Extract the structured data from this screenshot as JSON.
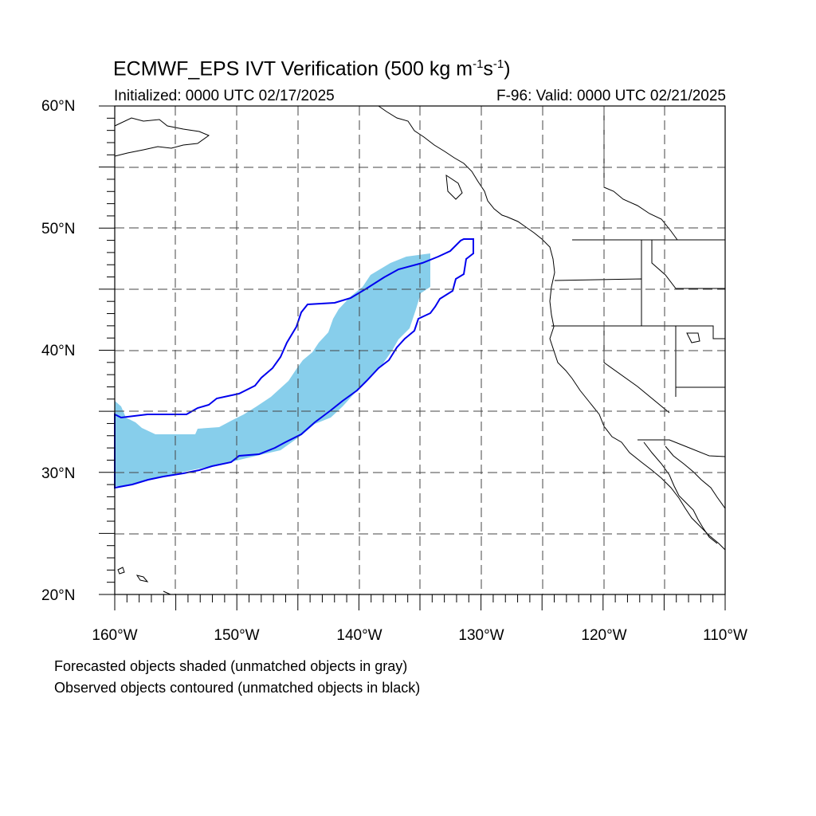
{
  "header": {
    "title": "ECMWF_EPS IVT Verification (500 kg m",
    "title_sup1": "-1",
    "title_mid": "s",
    "title_sup2": "-1",
    "title_end": ")",
    "initialized": "Initialized: 0000 UTC 02/17/2025",
    "valid": "F-96: Valid: 0000 UTC 02/21/2025"
  },
  "axes": {
    "lat_labels": [
      "60°N",
      "50°N",
      "40°N",
      "30°N",
      "20°N"
    ],
    "lon_labels": [
      "160°W",
      "150°W",
      "140°W",
      "130°W",
      "120°W",
      "110°W"
    ],
    "lon_range": [
      -160,
      -110
    ],
    "lat_range": [
      20,
      60
    ],
    "grid": "dashed every 5°"
  },
  "legend": {
    "line1": "Forecasted objects shaded (unmatched objects in gray)",
    "line2": "Observed objects contoured (unmatched objects in black)"
  },
  "colors": {
    "forecast_fill": "#87ceeb",
    "observed_contour": "#0000ee",
    "coast": "#000000",
    "grid": "#444444"
  }
}
